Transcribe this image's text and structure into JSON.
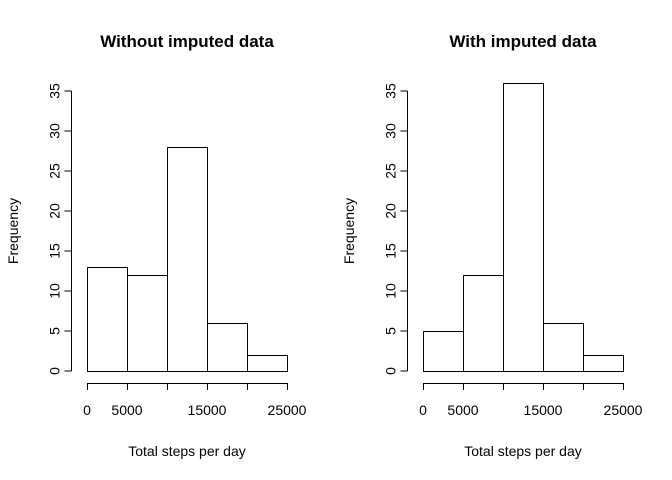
{
  "chart_data": [
    {
      "type": "bar",
      "title": "Without imputed data",
      "xlabel": "Total steps per day",
      "ylabel": "Frequency",
      "bin_edges": [
        0,
        5000,
        10000,
        15000,
        20000,
        25000
      ],
      "values": [
        13,
        12,
        28,
        6,
        2
      ],
      "xlim": [
        0,
        25000
      ],
      "ylim": [
        0,
        35
      ],
      "x_ticks": [
        0,
        5000,
        15000,
        25000
      ],
      "x_tick_labels": [
        "0",
        "5000",
        "15000",
        "25000"
      ],
      "y_ticks": [
        0,
        5,
        10,
        15,
        20,
        25,
        30,
        35
      ],
      "y_tick_labels": [
        "0",
        "5",
        "10",
        "15",
        "20",
        "25",
        "30",
        "35"
      ],
      "grid": false
    },
    {
      "type": "bar",
      "title": "With imputed data",
      "xlabel": "Total steps per day",
      "ylabel": "Frequency",
      "bin_edges": [
        0,
        5000,
        10000,
        15000,
        20000,
        25000
      ],
      "values": [
        5,
        12,
        36,
        6,
        2
      ],
      "xlim": [
        0,
        25000
      ],
      "ylim": [
        0,
        35
      ],
      "x_ticks": [
        0,
        5000,
        15000,
        25000
      ],
      "x_tick_labels": [
        "0",
        "5000",
        "15000",
        "25000"
      ],
      "y_ticks": [
        0,
        5,
        10,
        15,
        20,
        25,
        30,
        35
      ],
      "y_tick_labels": [
        "0",
        "5",
        "10",
        "15",
        "20",
        "25",
        "30",
        "35"
      ],
      "grid": false
    }
  ]
}
